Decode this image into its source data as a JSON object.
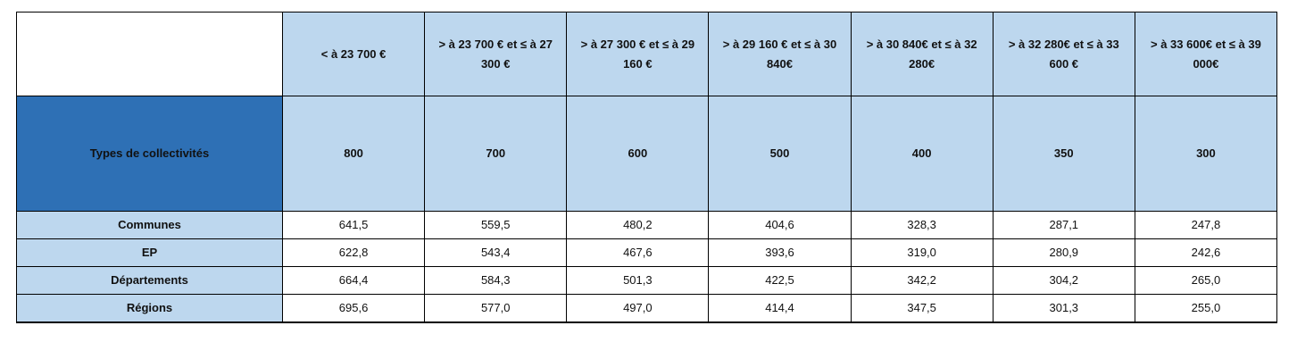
{
  "table": {
    "corner_label": "Types de collectivités",
    "header": [
      "< à 23 700 €",
      "> à 23 700 € et ≤ à 27 300 €",
      "> à 27 300 € et ≤ à 29 160 €",
      "> à 29 160 € et ≤ à 30 840€",
      "> à 30 840€ et ≤ à 32 280€",
      "> à 32 280€ et ≤ à 33 600 €",
      "> à 33 600€ et ≤ à 39 000€"
    ],
    "amounts": [
      "800",
      "700",
      "600",
      "500",
      "400",
      "350",
      "300"
    ],
    "rows": [
      {
        "label": "Communes",
        "values": [
          "641,5",
          "559,5",
          "480,2",
          "404,6",
          "328,3",
          "287,1",
          "247,8"
        ]
      },
      {
        "label": "EP",
        "values": [
          "622,8",
          "543,4",
          "467,6",
          "393,6",
          "319,0",
          "280,9",
          "242,6"
        ]
      },
      {
        "label": "Départements",
        "values": [
          "664,4",
          "584,3",
          "501,3",
          "422,5",
          "342,2",
          "304,2",
          "265,0"
        ]
      },
      {
        "label": "Régions",
        "values": [
          "695,6",
          "577,0",
          "497,0",
          "414,4",
          "347,5",
          "301,3",
          "255,0"
        ]
      }
    ]
  }
}
